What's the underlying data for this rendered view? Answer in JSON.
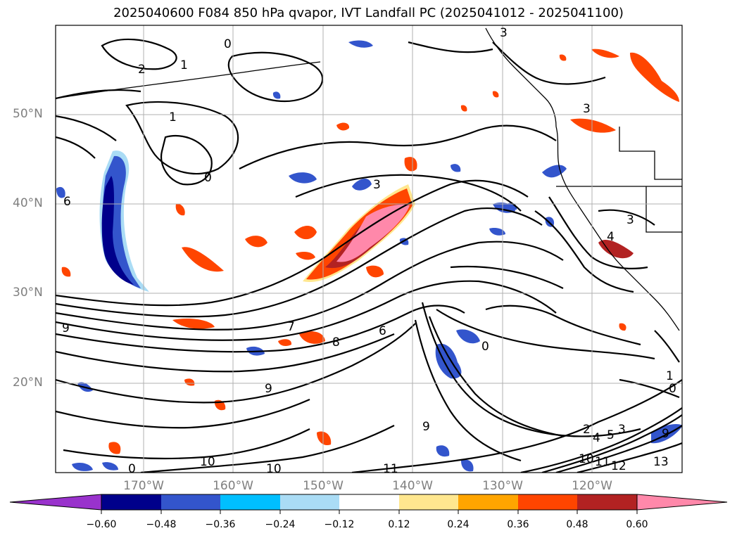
{
  "title": "2025040600 F084 850 hPa qvapor, IVT Landfall PC (2025041012 - 2025041100)",
  "lat_labels": [
    "50°N",
    "40°N",
    "30°N",
    "20°N"
  ],
  "lon_labels": [
    "170°W",
    "160°W",
    "150°W",
    "140°W",
    "130°W",
    "120°W"
  ],
  "colorbar": {
    "colors": [
      "#9932cc",
      "#00008b",
      "#3355cc",
      "#00bfff",
      "#aadcf5",
      "#ffffff",
      "#ffe78f",
      "#ffa500",
      "#ff4500",
      "#b22222",
      "#ff88aa"
    ],
    "ticks": [
      "−0.60",
      "−0.48",
      "−0.36",
      "−0.24",
      "−0.12",
      "0.12",
      "0.24",
      "0.36",
      "0.48",
      "0.60"
    ]
  },
  "contour_labels": [
    "2",
    "1",
    "0",
    "3",
    "1",
    "0",
    "6",
    "3",
    "3",
    "3",
    "4",
    "9",
    "7",
    "8",
    "6",
    "0",
    "9",
    "9",
    "10",
    "10",
    "11",
    "2",
    "4",
    "5",
    "3",
    "9",
    "10",
    "11",
    "12",
    "13",
    "0",
    "1",
    "0"
  ]
}
